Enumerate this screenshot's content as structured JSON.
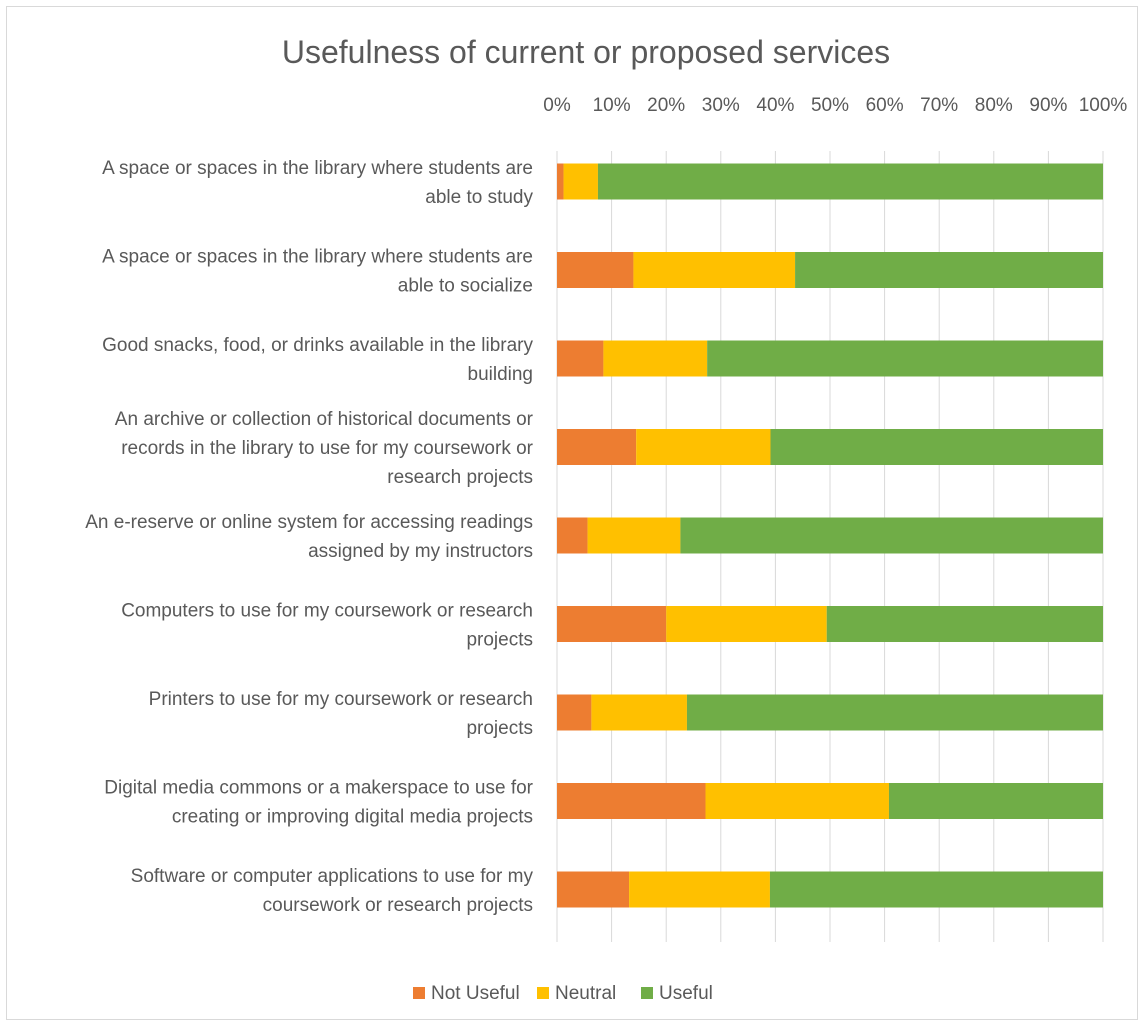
{
  "chart_data": {
    "type": "bar",
    "orientation": "horizontal",
    "stacked": "percent",
    "title": "Usefulness of current or proposed services",
    "xlim": [
      0,
      100
    ],
    "x_ticks": [
      "0%",
      "10%",
      "20%",
      "30%",
      "40%",
      "50%",
      "60%",
      "70%",
      "80%",
      "90%",
      "100%"
    ],
    "x_axis_position": "top",
    "grid": true,
    "legend_position": "bottom",
    "categories": [
      [
        "A space or spaces in the library where students are",
        "able to study"
      ],
      [
        "A space or spaces in the library where students are",
        "able to socialize"
      ],
      [
        "Good snacks, food, or drinks available in the library",
        "building"
      ],
      [
        "An archive or collection of historical documents or",
        "records in the library to use for my coursework or",
        "research projects"
      ],
      [
        "An e-reserve or online system for accessing readings",
        "assigned by my instructors"
      ],
      [
        "Computers to use for my coursework or research",
        "projects"
      ],
      [
        "Printers to use for my coursework or research",
        "projects"
      ],
      [
        "Digital media commons or a makerspace to use for",
        "creating or improving digital media projects"
      ],
      [
        "Software or computer applications to use for my",
        "coursework or research projects"
      ]
    ],
    "series": [
      {
        "name": "Not Useful",
        "color": "#ED7D31",
        "values": [
          1.2,
          14.0,
          8.5,
          14.5,
          5.6,
          20.0,
          6.3,
          27.2,
          13.2
        ]
      },
      {
        "name": "Neutral",
        "color": "#FFC000",
        "values": [
          6.3,
          29.6,
          19.0,
          24.6,
          17.0,
          29.4,
          17.5,
          33.6,
          25.8
        ]
      },
      {
        "name": "Useful",
        "color": "#70AD47",
        "values": [
          92.5,
          56.4,
          72.5,
          60.9,
          77.4,
          50.6,
          76.2,
          39.2,
          61.0
        ]
      }
    ]
  }
}
